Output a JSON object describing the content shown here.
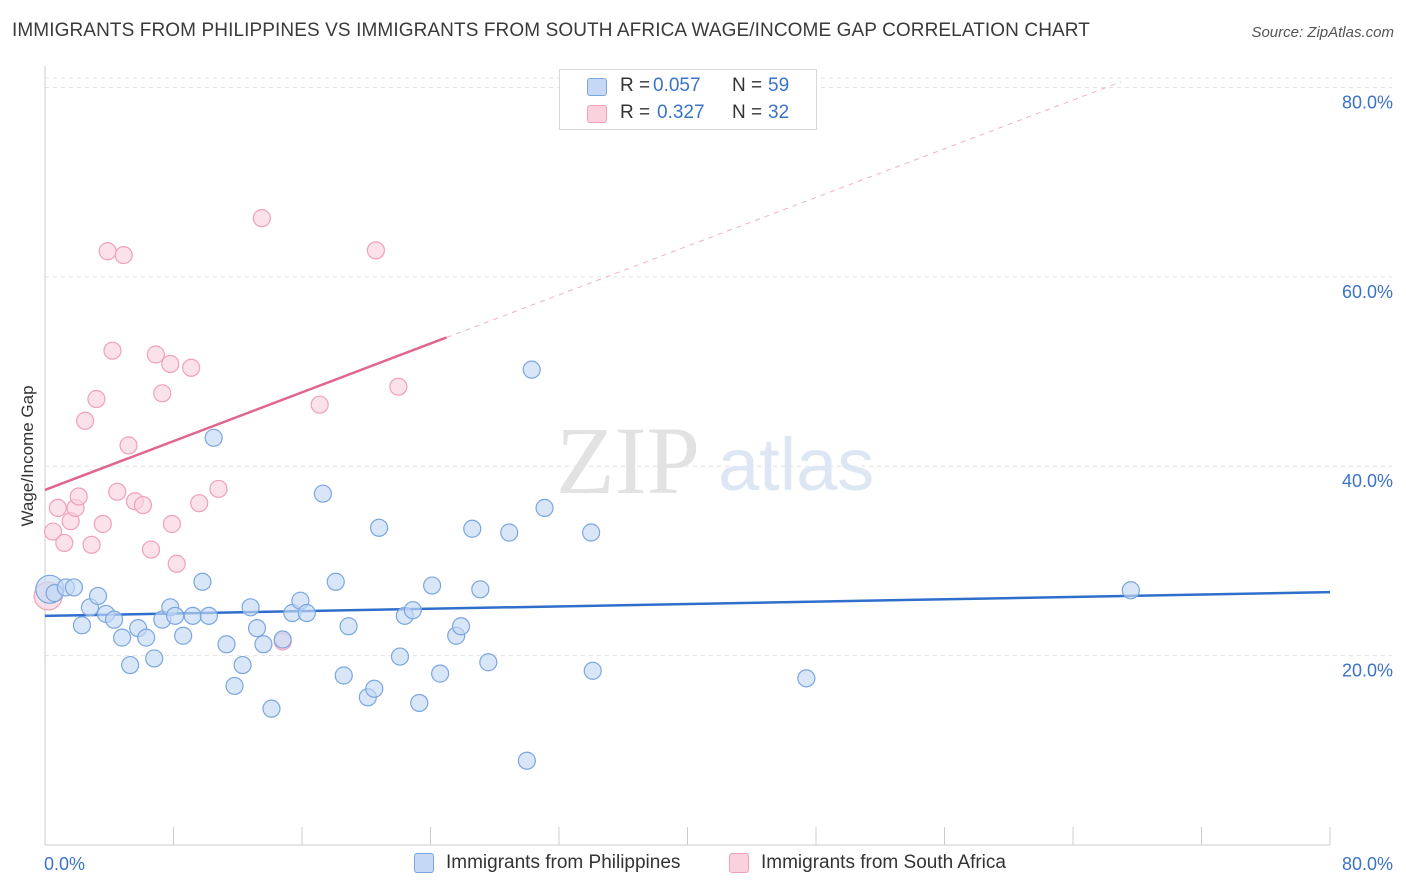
{
  "title": "IMMIGRANTS FROM PHILIPPINES VS IMMIGRANTS FROM SOUTH AFRICA WAGE/INCOME GAP CORRELATION CHART",
  "source": "Source: ZipAtlas.com",
  "watermark": {
    "zip": "ZIP",
    "atlas": "atlas"
  },
  "legend_stats": [
    {
      "r_label": "R =",
      "r_value": "0.057",
      "n_label": "N =",
      "n_value": "59"
    },
    {
      "r_label": "R =",
      "r_value": "0.327",
      "n_label": "N =",
      "n_value": "32"
    }
  ],
  "chart_data": {
    "type": "scatter",
    "title": "IMMIGRANTS FROM PHILIPPINES VS IMMIGRANTS FROM SOUTH AFRICA WAGE/INCOME GAP CORRELATION CHART",
    "xlabel": "",
    "ylabel": "Wage/Income Gap",
    "xlim": [
      0,
      80
    ],
    "ylim": [
      0,
      81
    ],
    "x_tick_labels": [
      "0.0%",
      "80.0%"
    ],
    "y_ticks": [
      20,
      40,
      60,
      80
    ],
    "y_tick_labels": [
      "20.0%",
      "40.0%",
      "60.0%",
      "80.0%"
    ],
    "grid": true,
    "legend_position": "top-center",
    "series": [
      {
        "name": "Immigrants from Philippines",
        "color": "#7aa6e0",
        "fill": "#c5d9f4",
        "trend": {
          "x": [
            0,
            80
          ],
          "y": [
            24.2,
            26.7
          ]
        },
        "points": [
          [
            0.3,
            27.0
          ],
          [
            0.6,
            26.6
          ],
          [
            1.3,
            27.2
          ],
          [
            1.8,
            27.2
          ],
          [
            2.3,
            23.2
          ],
          [
            2.8,
            25.1
          ],
          [
            3.3,
            26.3
          ],
          [
            3.8,
            24.4
          ],
          [
            4.3,
            23.8
          ],
          [
            4.8,
            21.9
          ],
          [
            5.3,
            19.0
          ],
          [
            5.8,
            22.9
          ],
          [
            6.3,
            21.9
          ],
          [
            6.8,
            19.7
          ],
          [
            7.3,
            23.8
          ],
          [
            7.8,
            25.1
          ],
          [
            8.1,
            24.2
          ],
          [
            8.6,
            22.1
          ],
          [
            9.2,
            24.2
          ],
          [
            9.8,
            27.8
          ],
          [
            10.2,
            24.2
          ],
          [
            10.5,
            43.0
          ],
          [
            11.3,
            21.2
          ],
          [
            11.8,
            16.8
          ],
          [
            12.3,
            19.0
          ],
          [
            12.8,
            25.1
          ],
          [
            13.2,
            22.9
          ],
          [
            13.6,
            21.2
          ],
          [
            14.1,
            14.4
          ],
          [
            14.8,
            21.7
          ],
          [
            15.4,
            24.5
          ],
          [
            15.9,
            25.8
          ],
          [
            16.3,
            24.5
          ],
          [
            17.3,
            37.1
          ],
          [
            18.1,
            27.8
          ],
          [
            18.6,
            17.9
          ],
          [
            18.9,
            23.1
          ],
          [
            20.1,
            15.6
          ],
          [
            20.5,
            16.5
          ],
          [
            20.8,
            33.5
          ],
          [
            22.1,
            19.9
          ],
          [
            22.4,
            24.2
          ],
          [
            22.9,
            24.8
          ],
          [
            23.3,
            15.0
          ],
          [
            24.1,
            27.4
          ],
          [
            24.6,
            18.1
          ],
          [
            25.6,
            22.1
          ],
          [
            25.9,
            23.1
          ],
          [
            26.6,
            33.4
          ],
          [
            27.1,
            27.0
          ],
          [
            27.6,
            19.3
          ],
          [
            28.9,
            33.0
          ],
          [
            30.0,
            8.9
          ],
          [
            30.3,
            50.2
          ],
          [
            31.1,
            35.6
          ],
          [
            34.0,
            33.0
          ],
          [
            34.1,
            18.4
          ],
          [
            47.4,
            17.6
          ],
          [
            67.6,
            26.9
          ]
        ]
      },
      {
        "name": "Immigrants from South Africa",
        "color": "#f0a0b8",
        "fill": "#f9d2de",
        "trend": {
          "x": [
            0,
            25
          ],
          "y": [
            37.5,
            53.6
          ]
        },
        "trend_extension": {
          "x": [
            25,
            67
          ],
          "y": [
            53.6,
            80.6
          ]
        },
        "points": [
          [
            0.2,
            26.3
          ],
          [
            0.5,
            33.1
          ],
          [
            0.8,
            35.6
          ],
          [
            1.2,
            31.9
          ],
          [
            1.6,
            34.2
          ],
          [
            1.9,
            35.6
          ],
          [
            2.1,
            36.8
          ],
          [
            2.5,
            44.8
          ],
          [
            2.9,
            31.7
          ],
          [
            3.2,
            47.1
          ],
          [
            3.6,
            33.9
          ],
          [
            3.9,
            62.7
          ],
          [
            4.2,
            52.2
          ],
          [
            4.5,
            37.3
          ],
          [
            4.9,
            62.3
          ],
          [
            5.2,
            42.2
          ],
          [
            5.6,
            36.3
          ],
          [
            6.1,
            35.9
          ],
          [
            6.6,
            31.2
          ],
          [
            6.9,
            51.8
          ],
          [
            7.3,
            47.7
          ],
          [
            7.8,
            50.8
          ],
          [
            7.9,
            33.9
          ],
          [
            8.2,
            29.7
          ],
          [
            9.1,
            50.4
          ],
          [
            9.6,
            36.1
          ],
          [
            10.8,
            37.6
          ],
          [
            13.5,
            66.2
          ],
          [
            14.8,
            21.5
          ],
          [
            17.1,
            46.5
          ],
          [
            20.6,
            62.8
          ],
          [
            22.0,
            48.4
          ]
        ]
      }
    ]
  }
}
